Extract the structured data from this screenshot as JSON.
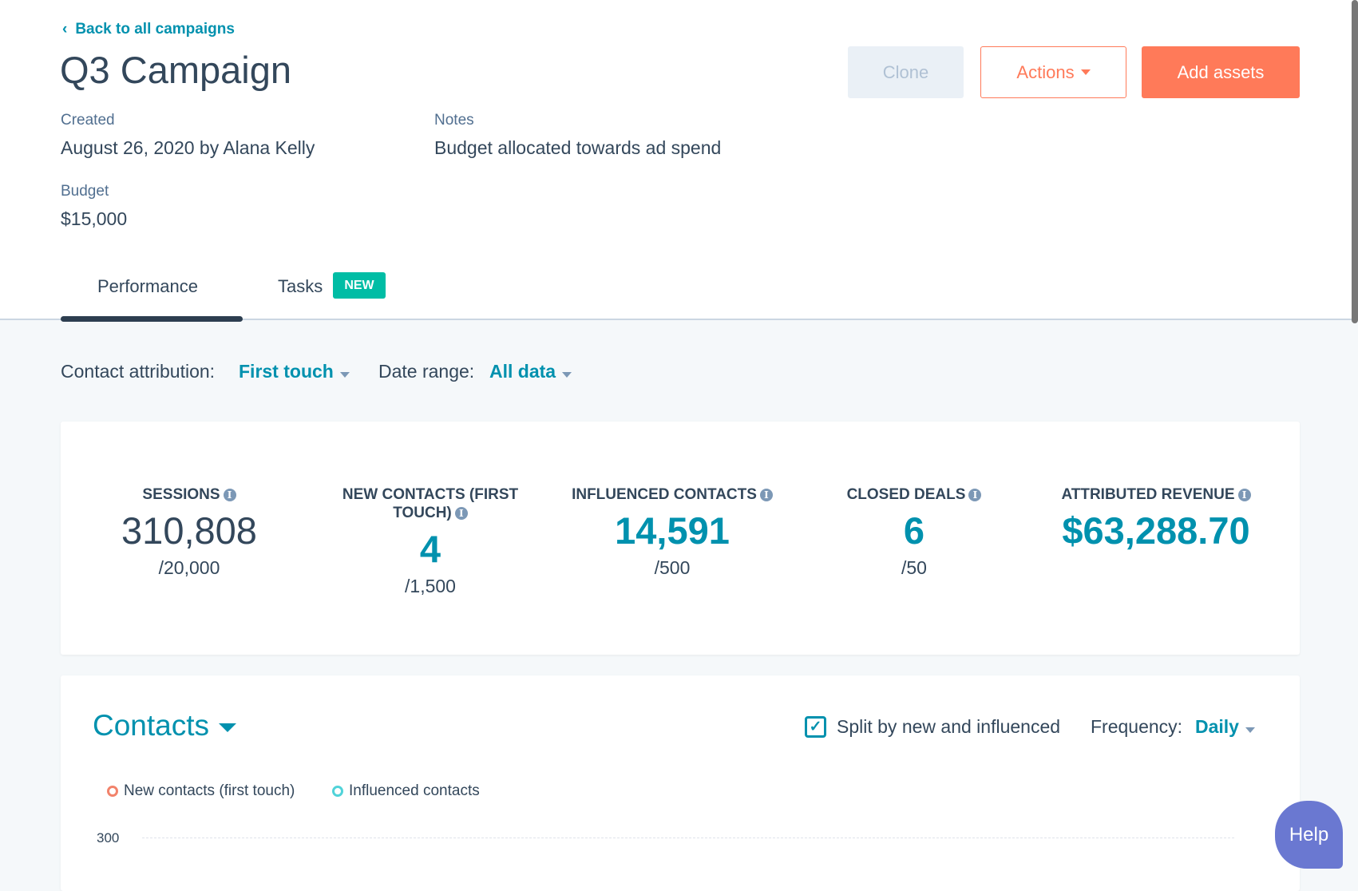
{
  "header": {
    "back_link": "Back to all campaigns",
    "title": "Q3 Campaign",
    "buttons": {
      "clone": "Clone",
      "actions": "Actions",
      "add_assets": "Add assets"
    }
  },
  "details": {
    "created_label": "Created",
    "created_value": "August 26, 2020 by Alana Kelly",
    "notes_label": "Notes",
    "notes_value": "Budget allocated towards ad spend",
    "budget_label": "Budget",
    "budget_value": "$15,000"
  },
  "tabs": [
    {
      "label": "Performance",
      "active": true
    },
    {
      "label": "Tasks",
      "badge": "NEW"
    }
  ],
  "filters": {
    "attribution_label": "Contact attribution:",
    "attribution_value": "First touch",
    "date_label": "Date range:",
    "date_value": "All data"
  },
  "stats": [
    {
      "label": "Sessions",
      "value": "310,808",
      "goal": "/20,000"
    },
    {
      "label": "New contacts (first touch)",
      "value": "4",
      "goal": "/1,500"
    },
    {
      "label": "Influenced contacts",
      "value": "14,591",
      "goal": "/500"
    },
    {
      "label": "Closed deals",
      "value": "6",
      "goal": "/50"
    },
    {
      "label": "Attributed revenue",
      "value": "$63,288.70",
      "goal": ""
    }
  ],
  "contacts": {
    "title": "Contacts",
    "split_label": "Split by new and influenced",
    "split_checked": true,
    "frequency_label": "Frequency:",
    "frequency_value": "Daily",
    "legend": [
      {
        "name": "New contacts (first touch)",
        "color": "#f2836b"
      },
      {
        "name": "Influenced contacts",
        "color": "#51d3d9"
      }
    ],
    "y_tick": "300"
  },
  "help": "Help",
  "colors": {
    "accent": "#0091ae",
    "primary": "#ff7a59",
    "text": "#33475b"
  }
}
